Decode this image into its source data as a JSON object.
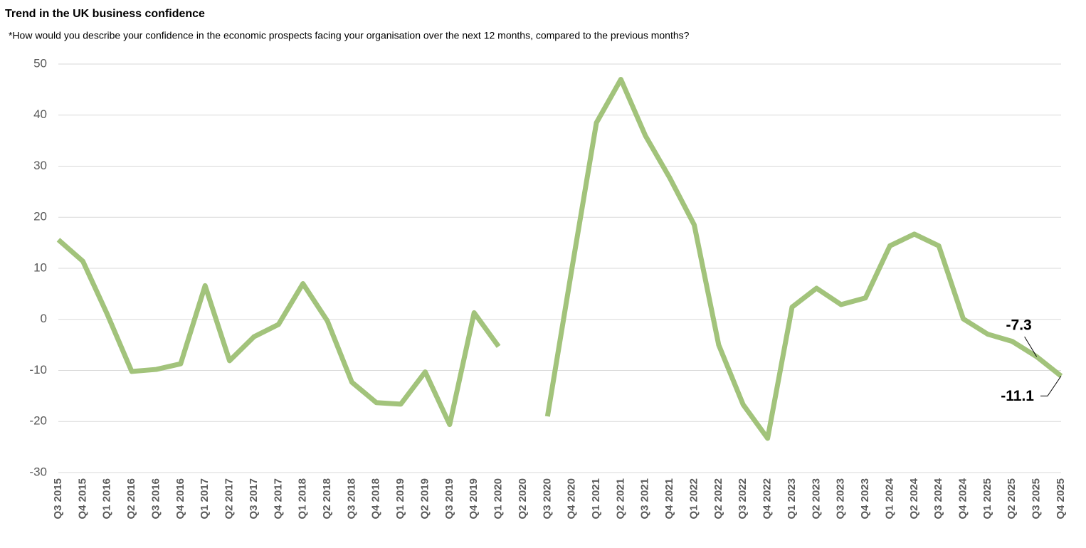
{
  "chart_data": {
    "type": "line",
    "title": "Trend in the UK business confidence",
    "subtitle": "*How would you describe your confidence in the economic prospects facing your organisation over the next 12 months, compared to the previous months?",
    "categories": [
      "Q3 2015",
      "Q4 2015",
      "Q1 2016",
      "Q2 2016",
      "Q3 2016",
      "Q4 2016",
      "Q1 2017",
      "Q2 2017",
      "Q3 2017",
      "Q4 2017",
      "Q1 2018",
      "Q2 2018",
      "Q3 2018",
      "Q4 2018",
      "Q1 2019",
      "Q2 2019",
      "Q3 2019",
      "Q4 2019",
      "Q1 2020",
      "Q2 2020",
      "Q3 2020",
      "Q4 2020",
      "Q1 2021",
      "Q2 2021",
      "Q3 2021",
      "Q4 2021",
      "Q1 2022",
      "Q2 2022",
      "Q3 2022",
      "Q4 2022",
      "Q1 2023",
      "Q2 2023",
      "Q3 2023",
      "Q4 2023",
      "Q1 2024",
      "Q2 2024",
      "Q3 2024",
      "Q4 2024",
      "Q1 2025",
      "Q2 2025",
      "Q3 2025",
      "Q4 2025"
    ],
    "values": [
      15.6,
      11.4,
      1,
      -10.2,
      -9.8,
      -8.7,
      6.6,
      -8.1,
      -3.4,
      -1.0,
      7.0,
      -0.3,
      -12.3,
      -16.3,
      -16.6,
      -10.3,
      -20.6,
      1.3,
      -5.3,
      null,
      -19.0,
      10,
      38.5,
      47.0,
      36.0,
      27.7,
      18.5,
      -5.0,
      -16.7,
      -23.3,
      2.4,
      6.1,
      2.9,
      4.2,
      14.4,
      16.7,
      14.4,
      0.1,
      -2.9,
      -4.3,
      -7.3,
      -11.1
    ],
    "labeled_points": [
      40,
      41
    ],
    "color": "#a2c37b",
    "ylim": [
      -30,
      50
    ],
    "yticks": [
      -30,
      -20,
      -10,
      0,
      10,
      20,
      30,
      40,
      50
    ],
    "grid": true
  }
}
